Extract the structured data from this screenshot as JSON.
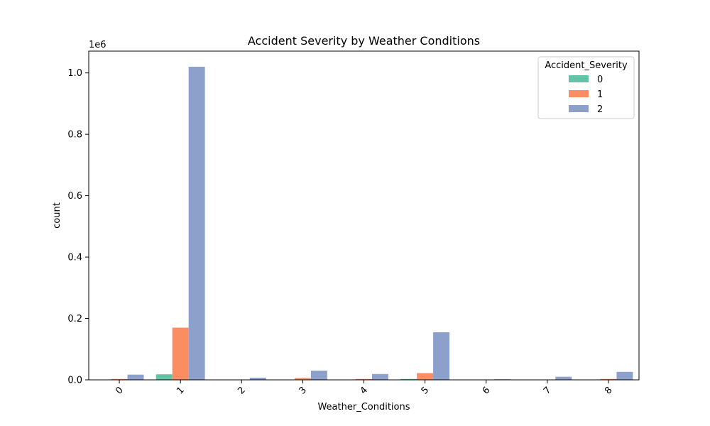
{
  "chart_data": {
    "type": "bar",
    "title": "Accident Severity by Weather Conditions",
    "xlabel": "Weather_Conditions",
    "ylabel": "count",
    "y_offset_label": "1e6",
    "categories": [
      "0",
      "1",
      "2",
      "3",
      "4",
      "5",
      "6",
      "7",
      "8"
    ],
    "series": [
      {
        "name": "0",
        "color": "#66c2a5",
        "values": [
          500,
          18000,
          200,
          300,
          200,
          3000,
          100,
          100,
          300
        ]
      },
      {
        "name": "1",
        "color": "#fc8d62",
        "values": [
          3000,
          170000,
          1000,
          6000,
          3000,
          22000,
          600,
          1000,
          3000
        ]
      },
      {
        "name": "2",
        "color": "#8da0cb",
        "values": [
          17000,
          1020000,
          7000,
          30000,
          19000,
          155000,
          2000,
          10000,
          26000
        ]
      }
    ],
    "yticks": [
      0.0,
      0.2,
      0.4,
      0.6,
      0.8,
      1.0
    ],
    "ylim": [
      0,
      1071000
    ],
    "legend": {
      "title": "Accident_Severity",
      "placement": "top-right"
    },
    "grid": false
  }
}
